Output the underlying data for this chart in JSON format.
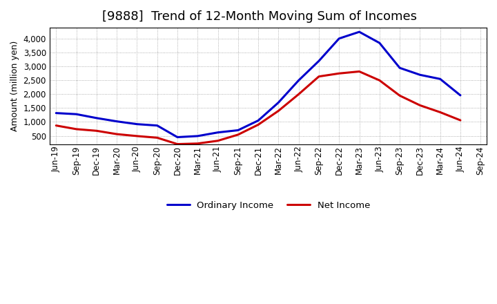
{
  "title": "[9888]  Trend of 12-Month Moving Sum of Incomes",
  "ylabel": "Amount (million yen)",
  "background_color": "#ffffff",
  "grid_color": "#999999",
  "x_labels": [
    "Jun-19",
    "Sep-19",
    "Dec-19",
    "Mar-20",
    "Jun-20",
    "Sep-20",
    "Dec-20",
    "Mar-21",
    "Jun-21",
    "Sep-21",
    "Dec-21",
    "Mar-22",
    "Jun-22",
    "Sep-22",
    "Dec-22",
    "Mar-23",
    "Jun-23",
    "Sep-23",
    "Dec-23",
    "Mar-24",
    "Jun-24",
    "Sep-24"
  ],
  "ordinary_income": [
    1320,
    1280,
    1140,
    1020,
    920,
    870,
    450,
    490,
    620,
    700,
    1050,
    1700,
    2500,
    3200,
    4010,
    4250,
    3850,
    2950,
    2700,
    2550,
    1960,
    null
  ],
  "net_income": [
    870,
    740,
    680,
    560,
    490,
    430,
    200,
    220,
    320,
    540,
    900,
    1400,
    2000,
    2640,
    2750,
    2820,
    2500,
    1950,
    1600,
    1350,
    1060,
    null
  ],
  "ordinary_color": "#0000cc",
  "net_color": "#cc0000",
  "ylim": [
    200,
    4400
  ],
  "yticks": [
    500,
    1000,
    1500,
    2000,
    2500,
    3000,
    3500,
    4000
  ],
  "legend_labels": [
    "Ordinary Income",
    "Net Income"
  ],
  "line_width": 2.2,
  "title_fontsize": 13,
  "axis_fontsize": 9,
  "tick_fontsize": 8.5,
  "legend_fontsize": 9.5
}
